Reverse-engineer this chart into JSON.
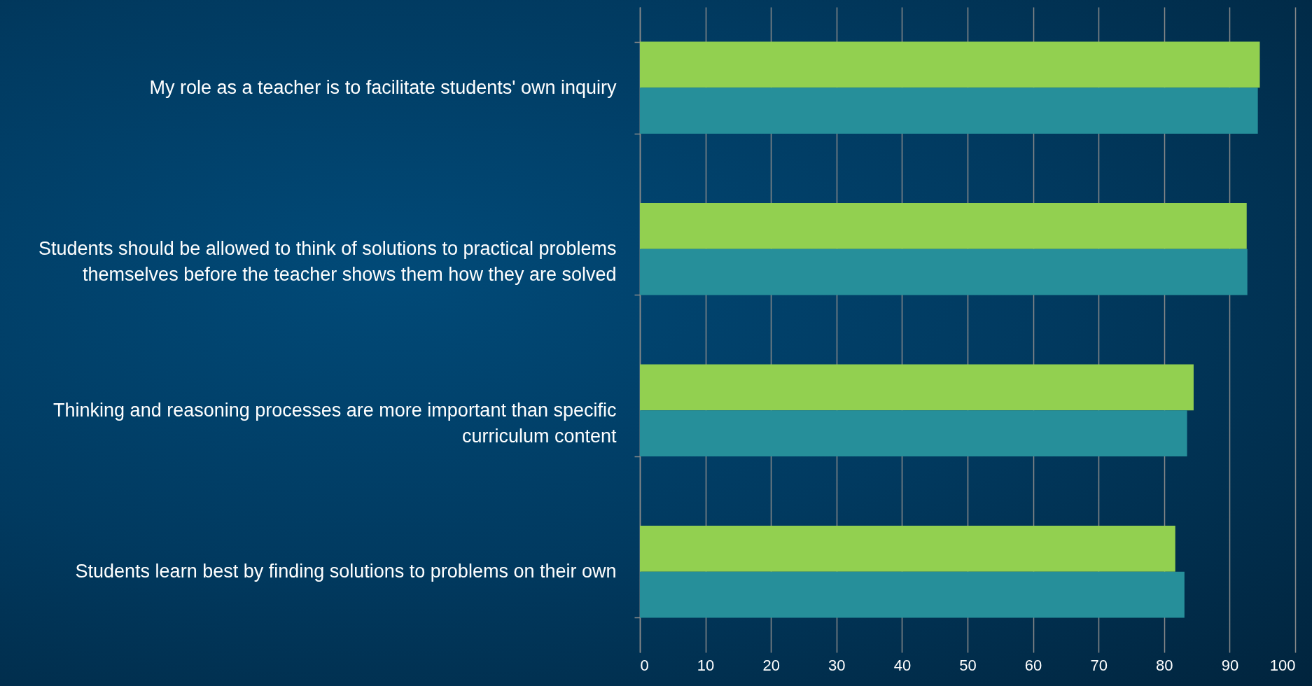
{
  "chart_data": {
    "type": "bar",
    "orientation": "horizontal",
    "categories": [
      "My role as a teacher is to facilitate students' own inquiry",
      "Students should be allowed to think of solutions to practical problems themselves before the teacher shows them how they are solved",
      "Thinking and reasoning processes are more important than specific curriculum content",
      "Students learn best by finding solutions to problems on their own"
    ],
    "series": [
      {
        "color": "#92d050",
        "values": [
          94.6,
          92.6,
          84.5,
          81.7
        ]
      },
      {
        "color": "#268f9a",
        "values": [
          94.3,
          92.7,
          83.5,
          83.1
        ]
      }
    ],
    "xlim": [
      0,
      100
    ],
    "xticks": [
      0,
      10,
      20,
      30,
      40,
      50,
      60,
      70,
      80,
      90,
      100
    ],
    "grid": "x"
  }
}
